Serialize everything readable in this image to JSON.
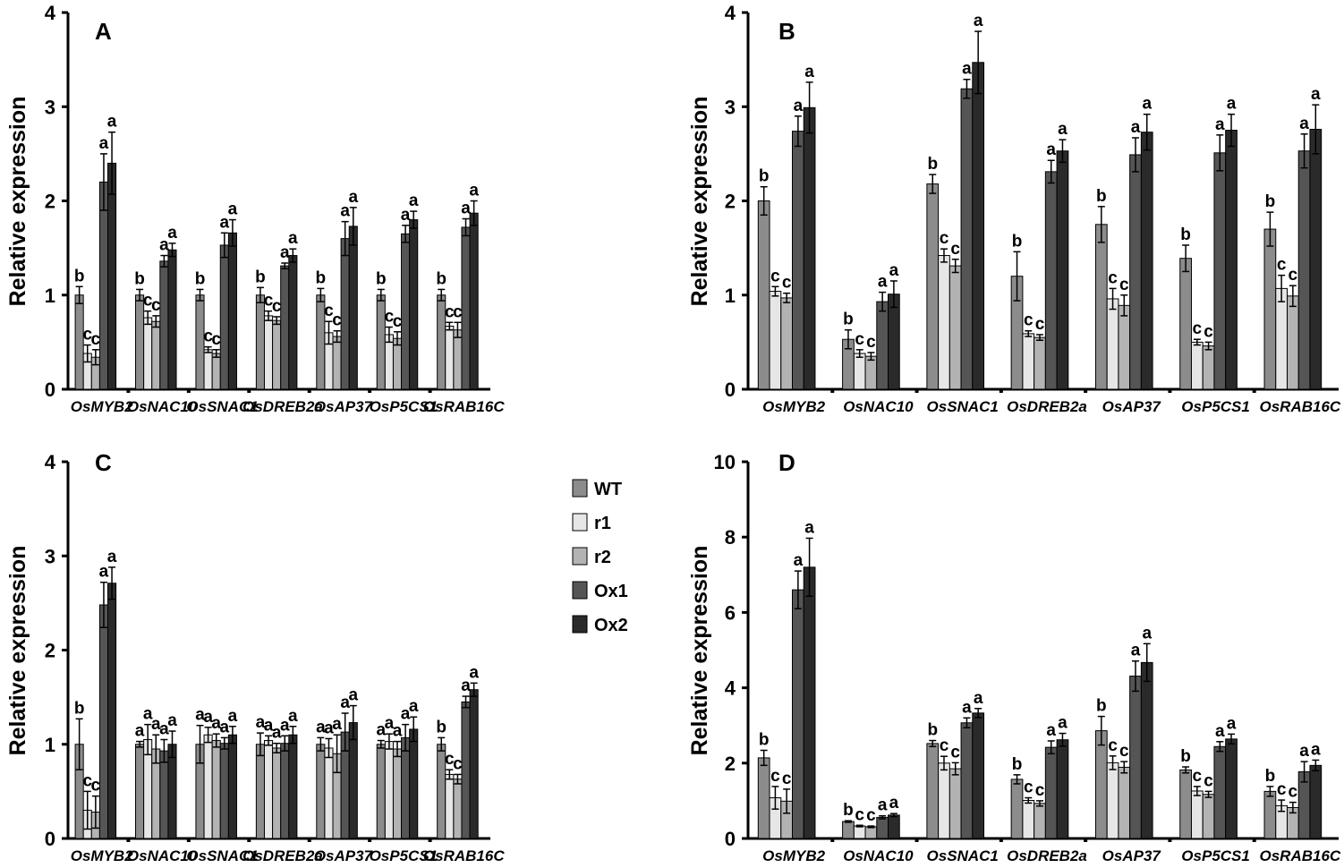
{
  "legend": [
    {
      "name": "WT",
      "color": "#8c8c8c"
    },
    {
      "name": "r1",
      "color": "#e6e6e6"
    },
    {
      "name": "r2",
      "color": "#b3b3b3"
    },
    {
      "name": "Ox1",
      "color": "#555555"
    },
    {
      "name": "Ox2",
      "color": "#2a2a2a"
    }
  ],
  "chart_data": [
    {
      "panel": "A",
      "type": "bar",
      "ylabel": "Relative expression",
      "ylim": [
        0,
        4
      ],
      "yticks": [
        0,
        1,
        2,
        3,
        4
      ],
      "categories": [
        "OsMYB2",
        "OsNAC10",
        "OsSNAC1",
        "OsDREB2a",
        "OsAP37",
        "OsP5CS1",
        "OsRAB16C"
      ],
      "series": [
        {
          "name": "WT",
          "values": [
            1.0,
            1.0,
            1.0,
            1.0,
            1.0,
            1.0,
            1.0
          ],
          "errors": [
            0.09,
            0.06,
            0.06,
            0.08,
            0.07,
            0.06,
            0.06
          ],
          "labels": [
            "b",
            "b",
            "b",
            "b",
            "b",
            "b",
            "b"
          ]
        },
        {
          "name": "r1",
          "values": [
            0.38,
            0.76,
            0.42,
            0.78,
            0.6,
            0.58,
            0.67
          ],
          "errors": [
            0.09,
            0.07,
            0.03,
            0.05,
            0.12,
            0.08,
            0.04
          ],
          "labels": [
            "c",
            "c",
            "c",
            "c",
            "c",
            "c",
            "c"
          ]
        },
        {
          "name": "r2",
          "values": [
            0.34,
            0.72,
            0.38,
            0.73,
            0.56,
            0.54,
            0.63
          ],
          "errors": [
            0.08,
            0.06,
            0.04,
            0.04,
            0.06,
            0.07,
            0.08
          ],
          "labels": [
            "c",
            "c",
            "c",
            "c",
            "c",
            "c",
            "c"
          ]
        },
        {
          "name": "Ox1",
          "values": [
            2.2,
            1.36,
            1.53,
            1.31,
            1.6,
            1.65,
            1.72
          ],
          "errors": [
            0.3,
            0.06,
            0.13,
            0.03,
            0.18,
            0.09,
            0.09
          ],
          "labels": [
            "a",
            "a",
            "a",
            "a",
            "a",
            "a",
            "a"
          ]
        },
        {
          "name": "Ox2",
          "values": [
            2.4,
            1.48,
            1.66,
            1.42,
            1.73,
            1.8,
            1.87
          ],
          "errors": [
            0.33,
            0.07,
            0.14,
            0.07,
            0.2,
            0.09,
            0.13
          ],
          "labels": [
            "a",
            "a",
            "a",
            "a",
            "a",
            "a",
            "a"
          ]
        }
      ]
    },
    {
      "panel": "B",
      "type": "bar",
      "ylabel": "Relative expression",
      "ylim": [
        0,
        4
      ],
      "yticks": [
        0,
        1,
        2,
        3,
        4
      ],
      "categories": [
        "OsMYB2",
        "OsNAC10",
        "OsSNAC1",
        "OsDREB2a",
        "OsAP37",
        "OsP5CS1",
        "OsRAB16C"
      ],
      "series": [
        {
          "name": "WT",
          "values": [
            2.0,
            0.53,
            2.18,
            1.2,
            1.75,
            1.39,
            1.7
          ],
          "errors": [
            0.15,
            0.1,
            0.1,
            0.26,
            0.19,
            0.14,
            0.18
          ],
          "labels": [
            "b",
            "b",
            "b",
            "b",
            "b",
            "b",
            "b"
          ]
        },
        {
          "name": "r1",
          "values": [
            1.04,
            0.38,
            1.42,
            0.59,
            0.96,
            0.5,
            1.07
          ],
          "errors": [
            0.05,
            0.04,
            0.07,
            0.03,
            0.11,
            0.03,
            0.14
          ],
          "labels": [
            "c",
            "c",
            "c",
            "c",
            "c",
            "c",
            "c"
          ]
        },
        {
          "name": "r2",
          "values": [
            0.97,
            0.35,
            1.31,
            0.55,
            0.89,
            0.46,
            0.99
          ],
          "errors": [
            0.05,
            0.04,
            0.07,
            0.03,
            0.11,
            0.04,
            0.11
          ],
          "labels": [
            "c",
            "c",
            "c",
            "c",
            "c",
            "c",
            "c"
          ]
        },
        {
          "name": "Ox1",
          "values": [
            2.74,
            0.93,
            3.19,
            2.31,
            2.49,
            2.51,
            2.53
          ],
          "errors": [
            0.16,
            0.1,
            0.1,
            0.12,
            0.18,
            0.19,
            0.18
          ],
          "labels": [
            "a",
            "a",
            "a",
            "a",
            "a",
            "a",
            "a"
          ]
        },
        {
          "name": "Ox2",
          "values": [
            2.99,
            1.01,
            3.47,
            2.53,
            2.73,
            2.75,
            2.76
          ],
          "errors": [
            0.27,
            0.14,
            0.33,
            0.12,
            0.19,
            0.17,
            0.26
          ],
          "labels": [
            "a",
            "a",
            "a",
            "a",
            "a",
            "a",
            "a"
          ]
        }
      ]
    },
    {
      "panel": "C",
      "type": "bar",
      "ylabel": "Relative expression",
      "ylim": [
        0,
        4
      ],
      "yticks": [
        0,
        1,
        2,
        3,
        4
      ],
      "categories": [
        "OsMYB2",
        "OsNAC10",
        "OsSNAC1",
        "OsDREB2a",
        "OsAP37",
        "OsP5CS1",
        "OsRAB16C"
      ],
      "series": [
        {
          "name": "WT",
          "values": [
            1.0,
            1.0,
            1.0,
            1.0,
            1.0,
            1.0,
            1.0
          ],
          "errors": [
            0.27,
            0.03,
            0.2,
            0.12,
            0.07,
            0.04,
            0.07
          ],
          "labels": [
            "b",
            "a",
            "a",
            "a",
            "a",
            "a",
            "b"
          ]
        },
        {
          "name": "r1",
          "values": [
            0.3,
            1.05,
            1.1,
            1.04,
            0.96,
            1.03,
            0.68
          ],
          "errors": [
            0.2,
            0.16,
            0.08,
            0.05,
            0.1,
            0.08,
            0.05
          ],
          "labels": [
            "c",
            "a",
            "a",
            "a",
            "a",
            "a",
            "c"
          ]
        },
        {
          "name": "r2",
          "values": [
            0.28,
            0.95,
            1.04,
            0.96,
            0.9,
            0.95,
            0.63
          ],
          "errors": [
            0.17,
            0.15,
            0.07,
            0.05,
            0.2,
            0.08,
            0.05
          ],
          "labels": [
            "c",
            "a",
            "a",
            "a",
            "a",
            "a",
            "c"
          ]
        },
        {
          "name": "Ox1",
          "values": [
            2.48,
            0.93,
            1.01,
            1.01,
            1.13,
            1.07,
            1.45
          ],
          "errors": [
            0.24,
            0.12,
            0.06,
            0.08,
            0.2,
            0.14,
            0.06
          ],
          "labels": [
            "a",
            "a",
            "a",
            "a",
            "a",
            "a",
            "a"
          ]
        },
        {
          "name": "Ox2",
          "values": [
            2.71,
            1.0,
            1.1,
            1.1,
            1.23,
            1.16,
            1.58
          ],
          "errors": [
            0.17,
            0.14,
            0.09,
            0.09,
            0.18,
            0.13,
            0.07
          ],
          "labels": [
            "a",
            "a",
            "a",
            "a",
            "a",
            "a",
            "a"
          ]
        }
      ]
    },
    {
      "panel": "D",
      "type": "bar",
      "ylabel": "Relative expression",
      "ylim": [
        0,
        10
      ],
      "yticks": [
        0,
        2,
        4,
        6,
        8,
        10
      ],
      "categories": [
        "OsMYB2",
        "OsNAC10",
        "OsSNAC1",
        "OsDREB2a",
        "OsAP37",
        "OsP5CS1",
        "OsRAB16C"
      ],
      "series": [
        {
          "name": "WT",
          "values": [
            2.14,
            0.45,
            2.52,
            1.57,
            2.86,
            1.82,
            1.25
          ],
          "errors": [
            0.2,
            0.02,
            0.08,
            0.12,
            0.38,
            0.08,
            0.13
          ],
          "labels": [
            "b",
            "b",
            "b",
            "b",
            "b",
            "b",
            "b"
          ]
        },
        {
          "name": "r1",
          "values": [
            1.08,
            0.33,
            2.0,
            1.01,
            2.01,
            1.26,
            0.87
          ],
          "errors": [
            0.3,
            0.02,
            0.18,
            0.07,
            0.18,
            0.12,
            0.15
          ],
          "labels": [
            "c",
            "c",
            "c",
            "c",
            "c",
            "c",
            "c"
          ]
        },
        {
          "name": "r2",
          "values": [
            0.99,
            0.31,
            1.85,
            0.93,
            1.89,
            1.17,
            0.82
          ],
          "errors": [
            0.32,
            0.02,
            0.16,
            0.07,
            0.15,
            0.08,
            0.14
          ],
          "labels": [
            "c",
            "c",
            "c",
            "c",
            "c",
            "c",
            "c"
          ]
        },
        {
          "name": "Ox1",
          "values": [
            6.6,
            0.56,
            3.07,
            2.42,
            4.31,
            2.44,
            1.77
          ],
          "errors": [
            0.5,
            0.04,
            0.13,
            0.17,
            0.4,
            0.13,
            0.27
          ],
          "labels": [
            "a",
            "a",
            "a",
            "a",
            "a",
            "a",
            "a"
          ]
        },
        {
          "name": "Ox2",
          "values": [
            7.2,
            0.62,
            3.33,
            2.62,
            4.67,
            2.64,
            1.94
          ],
          "errors": [
            0.77,
            0.04,
            0.12,
            0.17,
            0.5,
            0.13,
            0.14
          ],
          "labels": [
            "a",
            "a",
            "a",
            "a",
            "a",
            "a",
            "a"
          ]
        }
      ]
    }
  ]
}
